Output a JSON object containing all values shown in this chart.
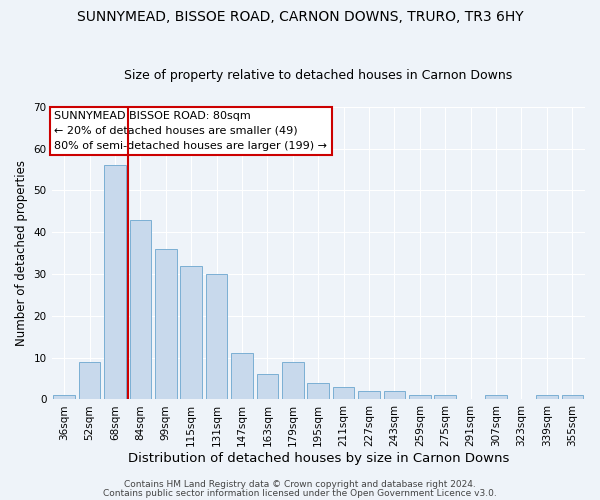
{
  "title": "SUNNYMEAD, BISSOE ROAD, CARNON DOWNS, TRURO, TR3 6HY",
  "subtitle": "Size of property relative to detached houses in Carnon Downs",
  "xlabel": "Distribution of detached houses by size in Carnon Downs",
  "ylabel": "Number of detached properties",
  "bar_labels": [
    "36sqm",
    "52sqm",
    "68sqm",
    "84sqm",
    "99sqm",
    "115sqm",
    "131sqm",
    "147sqm",
    "163sqm",
    "179sqm",
    "195sqm",
    "211sqm",
    "227sqm",
    "243sqm",
    "259sqm",
    "275sqm",
    "291sqm",
    "307sqm",
    "323sqm",
    "339sqm",
    "355sqm"
  ],
  "bar_values": [
    1,
    9,
    56,
    43,
    36,
    32,
    30,
    11,
    6,
    9,
    4,
    3,
    2,
    2,
    1,
    1,
    0,
    1,
    0,
    1,
    1
  ],
  "bar_color": "#c8d9ec",
  "bar_edge_color": "#7bafd4",
  "red_line_x": 3,
  "ylim": [
    0,
    70
  ],
  "yticks": [
    0,
    10,
    20,
    30,
    40,
    50,
    60,
    70
  ],
  "annotation_title": "SUNNYMEAD BISSOE ROAD: 80sqm",
  "annotation_line2": "← 20% of detached houses are smaller (49)",
  "annotation_line3": "80% of semi-detached houses are larger (199) →",
  "annotation_box_color": "#ffffff",
  "annotation_box_edge": "#cc0000",
  "footer1": "Contains HM Land Registry data © Crown copyright and database right 2024.",
  "footer2": "Contains public sector information licensed under the Open Government Licence v3.0.",
  "background_color": "#eef3f9",
  "grid_color": "#ffffff",
  "title_fontsize": 10,
  "subtitle_fontsize": 9,
  "xlabel_fontsize": 9.5,
  "ylabel_fontsize": 8.5,
  "tick_fontsize": 7.5,
  "annot_fontsize": 8,
  "footer_fontsize": 6.5
}
